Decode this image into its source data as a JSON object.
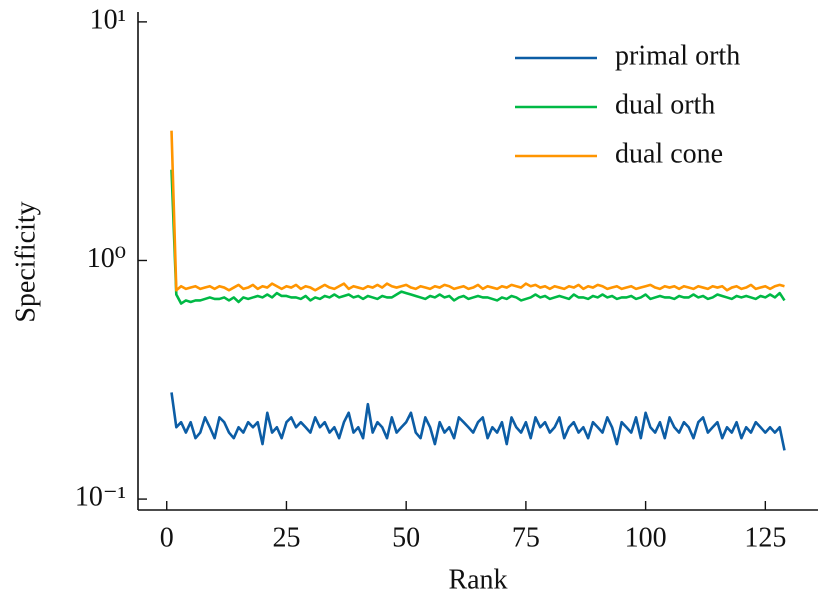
{
  "chart_data": {
    "type": "line",
    "xlabel": "Rank",
    "ylabel": "Specificity",
    "x": [
      1,
      2,
      3,
      4,
      5,
      6,
      7,
      8,
      9,
      10,
      11,
      12,
      13,
      14,
      15,
      16,
      17,
      18,
      19,
      20,
      21,
      22,
      23,
      24,
      25,
      26,
      27,
      28,
      29,
      30,
      31,
      32,
      33,
      34,
      35,
      36,
      37,
      38,
      39,
      40,
      41,
      42,
      43,
      44,
      45,
      46,
      47,
      48,
      49,
      50,
      51,
      52,
      53,
      54,
      55,
      56,
      57,
      58,
      59,
      60,
      61,
      62,
      63,
      64,
      65,
      66,
      67,
      68,
      69,
      70,
      71,
      72,
      73,
      74,
      75,
      76,
      77,
      78,
      79,
      80,
      81,
      82,
      83,
      84,
      85,
      86,
      87,
      88,
      89,
      90,
      91,
      92,
      93,
      94,
      95,
      96,
      97,
      98,
      99,
      100,
      101,
      102,
      103,
      104,
      105,
      106,
      107,
      108,
      109,
      110,
      111,
      112,
      113,
      114,
      115,
      116,
      117,
      118,
      119,
      120,
      121,
      122,
      123,
      124,
      125,
      126,
      127,
      128,
      129
    ],
    "series": [
      {
        "name": "primal orth",
        "color": "#0c5da5",
        "values": [
          0.28,
          0.2,
          0.21,
          0.19,
          0.21,
          0.18,
          0.19,
          0.22,
          0.2,
          0.18,
          0.22,
          0.21,
          0.19,
          0.18,
          0.2,
          0.19,
          0.21,
          0.2,
          0.21,
          0.17,
          0.23,
          0.19,
          0.2,
          0.18,
          0.21,
          0.22,
          0.2,
          0.21,
          0.2,
          0.19,
          0.22,
          0.2,
          0.21,
          0.19,
          0.2,
          0.18,
          0.21,
          0.23,
          0.19,
          0.2,
          0.18,
          0.25,
          0.19,
          0.21,
          0.2,
          0.18,
          0.22,
          0.19,
          0.2,
          0.21,
          0.23,
          0.19,
          0.18,
          0.22,
          0.2,
          0.17,
          0.21,
          0.19,
          0.2,
          0.18,
          0.22,
          0.21,
          0.2,
          0.19,
          0.21,
          0.22,
          0.18,
          0.2,
          0.19,
          0.21,
          0.17,
          0.22,
          0.2,
          0.19,
          0.21,
          0.18,
          0.22,
          0.2,
          0.21,
          0.19,
          0.2,
          0.22,
          0.18,
          0.2,
          0.21,
          0.19,
          0.2,
          0.18,
          0.21,
          0.2,
          0.19,
          0.22,
          0.2,
          0.17,
          0.21,
          0.2,
          0.19,
          0.22,
          0.18,
          0.23,
          0.2,
          0.19,
          0.21,
          0.18,
          0.22,
          0.2,
          0.19,
          0.21,
          0.2,
          0.18,
          0.21,
          0.22,
          0.19,
          0.2,
          0.21,
          0.18,
          0.2,
          0.19,
          0.21,
          0.18,
          0.2,
          0.19,
          0.21,
          0.2,
          0.19,
          0.2,
          0.19,
          0.2,
          0.16
        ]
      },
      {
        "name": "dual orth",
        "color": "#00b945",
        "values": [
          2.4,
          0.72,
          0.66,
          0.68,
          0.67,
          0.68,
          0.68,
          0.69,
          0.7,
          0.69,
          0.69,
          0.7,
          0.68,
          0.7,
          0.67,
          0.7,
          0.69,
          0.7,
          0.71,
          0.7,
          0.72,
          0.7,
          0.73,
          0.71,
          0.71,
          0.7,
          0.7,
          0.69,
          0.71,
          0.68,
          0.7,
          0.69,
          0.71,
          0.7,
          0.72,
          0.7,
          0.71,
          0.72,
          0.7,
          0.71,
          0.69,
          0.71,
          0.7,
          0.69,
          0.71,
          0.7,
          0.7,
          0.72,
          0.74,
          0.73,
          0.72,
          0.71,
          0.7,
          0.69,
          0.71,
          0.7,
          0.72,
          0.7,
          0.71,
          0.68,
          0.7,
          0.71,
          0.69,
          0.7,
          0.71,
          0.7,
          0.7,
          0.69,
          0.68,
          0.7,
          0.69,
          0.71,
          0.7,
          0.68,
          0.69,
          0.7,
          0.72,
          0.7,
          0.71,
          0.69,
          0.7,
          0.71,
          0.7,
          0.69,
          0.72,
          0.7,
          0.7,
          0.69,
          0.71,
          0.7,
          0.72,
          0.7,
          0.71,
          0.69,
          0.7,
          0.7,
          0.71,
          0.69,
          0.7,
          0.72,
          0.69,
          0.7,
          0.71,
          0.7,
          0.7,
          0.69,
          0.71,
          0.7,
          0.7,
          0.72,
          0.7,
          0.71,
          0.69,
          0.7,
          0.72,
          0.71,
          0.7,
          0.69,
          0.71,
          0.7,
          0.71,
          0.7,
          0.69,
          0.71,
          0.7,
          0.72,
          0.7,
          0.73,
          0.68
        ]
      },
      {
        "name": "dual cone",
        "color": "#ff9500",
        "values": [
          3.5,
          0.75,
          0.78,
          0.76,
          0.77,
          0.78,
          0.76,
          0.77,
          0.78,
          0.76,
          0.78,
          0.77,
          0.75,
          0.77,
          0.79,
          0.76,
          0.77,
          0.79,
          0.76,
          0.78,
          0.77,
          0.8,
          0.78,
          0.76,
          0.78,
          0.77,
          0.79,
          0.76,
          0.78,
          0.77,
          0.75,
          0.77,
          0.79,
          0.77,
          0.76,
          0.78,
          0.8,
          0.76,
          0.78,
          0.77,
          0.76,
          0.78,
          0.77,
          0.79,
          0.77,
          0.8,
          0.78,
          0.77,
          0.78,
          0.79,
          0.77,
          0.76,
          0.78,
          0.77,
          0.76,
          0.78,
          0.77,
          0.79,
          0.78,
          0.76,
          0.77,
          0.78,
          0.76,
          0.77,
          0.79,
          0.76,
          0.78,
          0.77,
          0.76,
          0.78,
          0.77,
          0.79,
          0.78,
          0.77,
          0.8,
          0.78,
          0.79,
          0.77,
          0.78,
          0.76,
          0.78,
          0.77,
          0.76,
          0.78,
          0.77,
          0.79,
          0.76,
          0.78,
          0.77,
          0.79,
          0.78,
          0.76,
          0.77,
          0.78,
          0.76,
          0.77,
          0.78,
          0.76,
          0.77,
          0.78,
          0.79,
          0.77,
          0.76,
          0.78,
          0.77,
          0.78,
          0.76,
          0.78,
          0.77,
          0.76,
          0.78,
          0.77,
          0.76,
          0.78,
          0.77,
          0.78,
          0.75,
          0.77,
          0.78,
          0.76,
          0.77,
          0.79,
          0.76,
          0.77,
          0.78,
          0.76,
          0.78,
          0.79,
          0.78
        ]
      }
    ],
    "xlim": [
      -6,
      136
    ],
    "xticks": [
      0,
      25,
      50,
      75,
      100,
      125
    ],
    "ylim": [
      0.09,
      11
    ],
    "log_y": true,
    "yticks": [
      {
        "value": 0.1,
        "label": "10⁻¹"
      },
      {
        "value": 1,
        "label": "10⁰"
      },
      {
        "value": 10,
        "label": "10¹"
      }
    ],
    "legend": "upper right"
  }
}
